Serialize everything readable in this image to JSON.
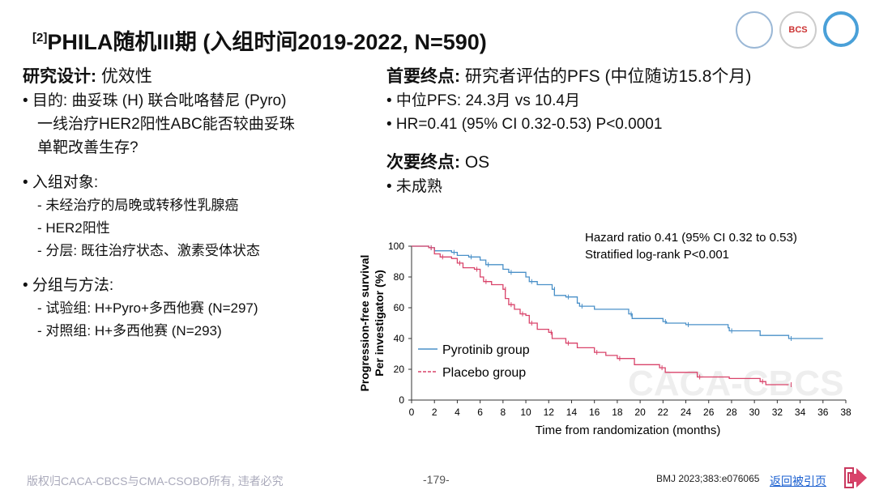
{
  "title": {
    "ref": "[2]",
    "text": "PHILA随机III期 (入组时间2019-2022, N=590)"
  },
  "logos": [
    "university-seal-logo",
    "BCS",
    "csobo-logo"
  ],
  "left": {
    "design_label": "研究设计:",
    "design_value": "优效性",
    "purpose": [
      "• 目的: 曲妥珠 (H) 联合吡咯替尼 (Pyro)",
      "一线治疗HER2阳性ABC能否较曲妥珠",
      "单靶改善生存?"
    ],
    "subjects_label": "• 入组对象:",
    "subjects": [
      "- 未经治疗的局晚或转移性乳腺癌",
      "- HER2阳性",
      "- 分层: 既往治疗状态、激素受体状态"
    ],
    "groups_label": "• 分组与方法:",
    "groups": [
      "- 试验组: H+Pyro+多西他赛 (N=297)",
      "- 对照组: H+多西他赛 (N=293)"
    ]
  },
  "right": {
    "primary_label": "首要终点:",
    "primary_value": "研究者评估的PFS (中位随访15.8个月)",
    "primary_items": [
      "• 中位PFS: 24.3月 vs 10.4月",
      "• HR=0.41 (95% CI 0.32-0.53) P<0.0001"
    ],
    "secondary_label": "次要终点:",
    "secondary_value": "OS",
    "secondary_items": [
      "• 未成熟"
    ]
  },
  "chart_data": {
    "type": "line",
    "step": true,
    "xlabel": "Time from randomization (months)",
    "ylabel": [
      "Progression-free survival",
      "Per investigator (%)"
    ],
    "xlim": [
      0,
      38
    ],
    "ylim": [
      0,
      100
    ],
    "xticks": [
      0,
      2,
      4,
      6,
      8,
      10,
      12,
      14,
      16,
      18,
      20,
      22,
      24,
      26,
      28,
      30,
      32,
      34,
      36,
      38
    ],
    "yticks": [
      0,
      20,
      40,
      60,
      80,
      100
    ],
    "annotations": [
      "Hazard ratio 0.41 (95% CI 0.32 to 0.53)",
      "Stratified log-rank P<0.001"
    ],
    "legend_position": "bottom-left",
    "watermark": "CACA-CBCS",
    "series": [
      {
        "name": "Pyrotinib group",
        "color": "#4a90c8",
        "points": [
          [
            0,
            100
          ],
          [
            1.5,
            99
          ],
          [
            2,
            97
          ],
          [
            3.5,
            96
          ],
          [
            4,
            94
          ],
          [
            5,
            93
          ],
          [
            6,
            91
          ],
          [
            6.5,
            88
          ],
          [
            8,
            85
          ],
          [
            8.5,
            83
          ],
          [
            10,
            80
          ],
          [
            10.3,
            77
          ],
          [
            11,
            75
          ],
          [
            12.3,
            72
          ],
          [
            12.5,
            68
          ],
          [
            13.5,
            67
          ],
          [
            14.5,
            63
          ],
          [
            14.7,
            61
          ],
          [
            16,
            59
          ],
          [
            19,
            56
          ],
          [
            19.3,
            53
          ],
          [
            22,
            51
          ],
          [
            22.3,
            50
          ],
          [
            24,
            49
          ],
          [
            27.7,
            47
          ],
          [
            27.8,
            45
          ],
          [
            30.5,
            42
          ],
          [
            33,
            40
          ],
          [
            36,
            40
          ]
        ]
      },
      {
        "name": "Placebo group",
        "color": "#d9436a",
        "points": [
          [
            0,
            100
          ],
          [
            1.5,
            99
          ],
          [
            2,
            95
          ],
          [
            2.5,
            93
          ],
          [
            3.5,
            92
          ],
          [
            4,
            89
          ],
          [
            4.5,
            86
          ],
          [
            5.5,
            85
          ],
          [
            6,
            80
          ],
          [
            6.3,
            77
          ],
          [
            7,
            75
          ],
          [
            8,
            72
          ],
          [
            8.2,
            66
          ],
          [
            8.5,
            62
          ],
          [
            9,
            59
          ],
          [
            9.5,
            56
          ],
          [
            10,
            55
          ],
          [
            10.3,
            50
          ],
          [
            11,
            46
          ],
          [
            12,
            44
          ],
          [
            12.3,
            40
          ],
          [
            13.5,
            37
          ],
          [
            14.5,
            34
          ],
          [
            16,
            31
          ],
          [
            17,
            29
          ],
          [
            18,
            27
          ],
          [
            19.5,
            23
          ],
          [
            21.7,
            21
          ],
          [
            22.2,
            18
          ],
          [
            25,
            15
          ],
          [
            27.8,
            14
          ],
          [
            30.5,
            12
          ],
          [
            31,
            10
          ],
          [
            33,
            10
          ]
        ]
      }
    ]
  },
  "footer": {
    "copyright": "版权归CACA-CBCS与CMA-CSOBO所有, 违者必究",
    "page": "-179-",
    "citation": "BMJ 2023;383:e076065",
    "back_link": "返回被引页"
  }
}
